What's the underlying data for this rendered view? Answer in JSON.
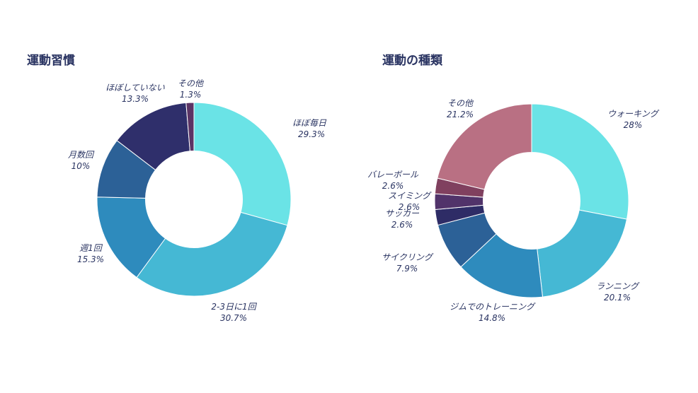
{
  "colors": {
    "title": "#2a3462",
    "label": "#2a3462",
    "background": "#ffffff"
  },
  "chart_data": [
    {
      "type": "pie",
      "hole": 0.5,
      "title": "運動習慣",
      "categories": [
        "ほぼ毎日",
        "2-3日に1回",
        "週1回",
        "月数回",
        "ほぼしていない",
        "その他"
      ],
      "values": [
        29.3,
        30.7,
        15.3,
        10,
        13.3,
        1.3
      ],
      "value_labels": [
        "29.3%",
        "30.7%",
        "15.3%",
        "10%",
        "13.3%",
        "1.3%"
      ],
      "colors": [
        "#6ae3e6",
        "#45b8d4",
        "#2e8bbd",
        "#2c6197",
        "#2f2f6b",
        "#5b3465"
      ],
      "direction": "clockwise",
      "start": "12 o'clock"
    },
    {
      "type": "pie",
      "hole": 0.5,
      "title": "運動の種類",
      "categories": [
        "ウォーキング",
        "ランニング",
        "ジムでのトレーニング",
        "サイクリング",
        "サッカー",
        "スイミング",
        "バレーボール",
        "その他"
      ],
      "values": [
        28,
        20.1,
        14.8,
        7.9,
        2.6,
        2.6,
        2.6,
        21.2
      ],
      "value_labels": [
        "28%",
        "20.1%",
        "14.8%",
        "7.9%",
        "2.6%",
        "2.6%",
        "2.6%",
        "21.2%"
      ],
      "colors": [
        "#6ae3e6",
        "#45b8d4",
        "#2e8bbd",
        "#2c6197",
        "#2e2c66",
        "#51336a",
        "#80405f",
        "#b97083"
      ],
      "direction": "clockwise",
      "start": "12 o'clock"
    }
  ]
}
